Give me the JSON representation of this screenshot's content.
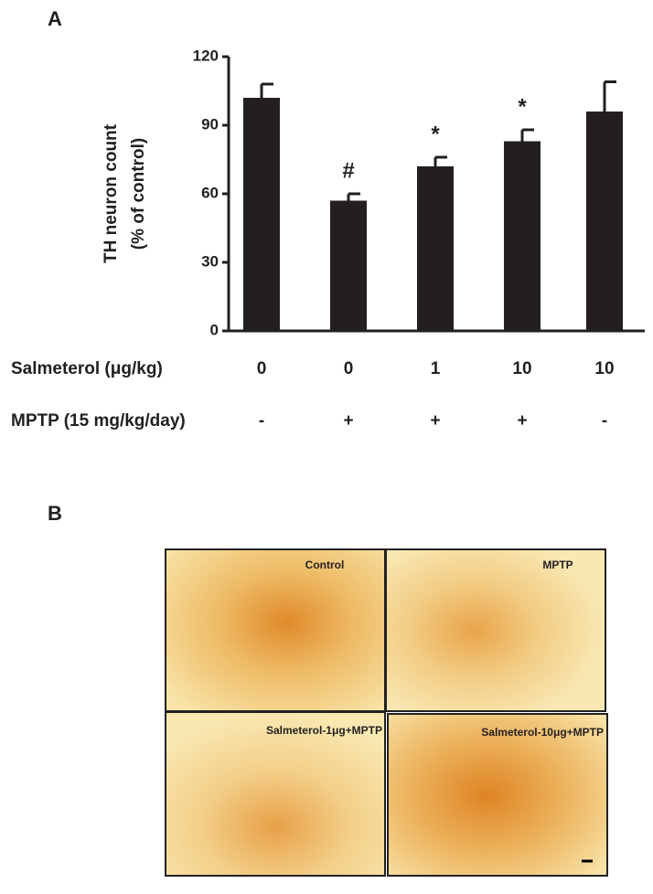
{
  "figure": {
    "panel_a": "A",
    "panel_b": "B"
  },
  "chart_data": {
    "type": "bar",
    "y_label": [
      "TH neuron count",
      "(% of control)"
    ],
    "row_labels": [
      "Salmeterol (μg/kg)",
      "MPTP (15 mg/kg/day)"
    ],
    "categories": [
      "0",
      "0",
      "1",
      "10",
      "10"
    ],
    "mptp": [
      "-",
      "+",
      "+",
      "+",
      "-"
    ],
    "values": [
      102,
      57,
      72,
      83,
      96
    ],
    "errors": [
      6,
      3,
      4,
      5,
      13
    ],
    "annotations": [
      null,
      "#",
      "*",
      "*",
      null
    ],
    "color": "#231f20",
    "ylim": [
      0,
      120
    ],
    "yticks": [
      0,
      30,
      60,
      90,
      120
    ]
  },
  "images": {
    "labels": [
      "Control",
      "MPTP",
      "Salmeterol-1μg+MPTP",
      "Salmeterol-10μg+MPTP"
    ]
  }
}
